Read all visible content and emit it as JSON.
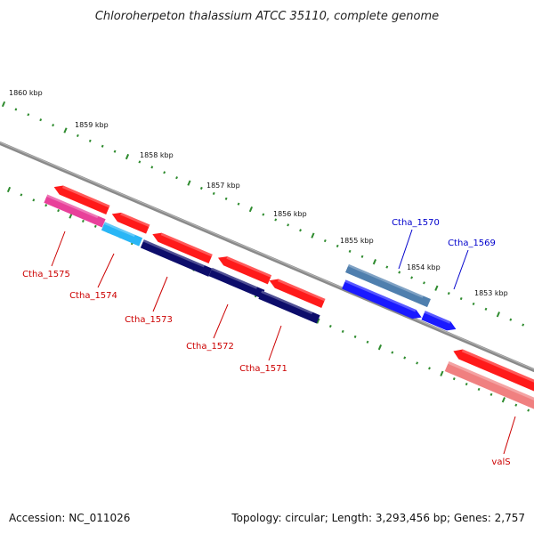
{
  "title": "Chloroherpeton thalassium ATCC 35110, complete genome",
  "footer": {
    "accession": "Accession: NC_011026",
    "summary": "Topology: circular; Length: 3,293,456 bp; Genes: 2,757"
  },
  "kbp_ticks": [
    "1860 kbp",
    "1859 kbp",
    "1858 kbp",
    "1857 kbp",
    "1856 kbp",
    "1855 kbp",
    "1854 kbp",
    "1853 kbp"
  ],
  "gene_labels": [
    {
      "name": "Ctha_1575",
      "color": "#cc0000"
    },
    {
      "name": "Ctha_1574",
      "color": "#cc0000"
    },
    {
      "name": "Ctha_1573",
      "color": "#cc0000"
    },
    {
      "name": "Ctha_1572",
      "color": "#cc0000"
    },
    {
      "name": "Ctha_1571",
      "color": "#cc0000"
    },
    {
      "name": "Ctha_1570",
      "color": "#0000cc"
    },
    {
      "name": "Ctha_1569",
      "color": "#0000cc"
    },
    {
      "name": "valS",
      "color": "#cc0000"
    }
  ],
  "colors": {
    "backbone": "#8a8a8a",
    "tick": "#2e8b2e",
    "cds_red": "#ff1a1a",
    "gene_pink": "#e8409a",
    "gene_cyan": "#29b6f6",
    "gene_navy": "#0d0d6b",
    "gene_steel": "#4f7fae",
    "gene_blue": "#1a1aff",
    "gene_salmon": "#f08080"
  }
}
